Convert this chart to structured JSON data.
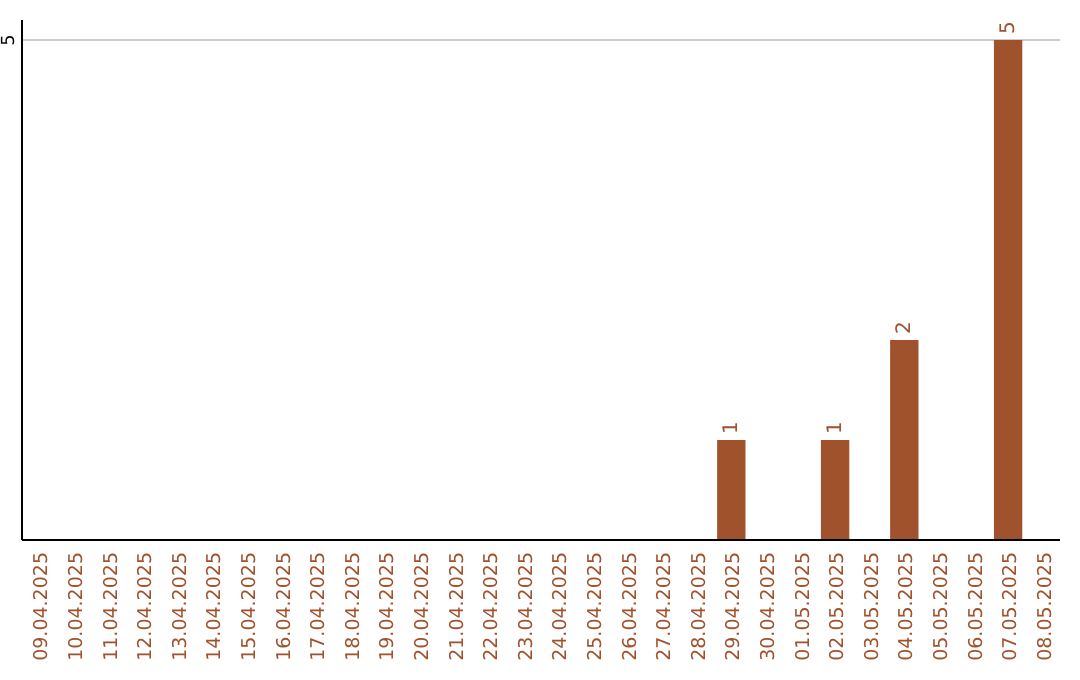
{
  "chart_data": {
    "type": "bar",
    "categories": [
      "09.04.2025",
      "10.04.2025",
      "11.04.2025",
      "12.04.2025",
      "13.04.2025",
      "14.04.2025",
      "15.04.2025",
      "16.04.2025",
      "17.04.2025",
      "18.04.2025",
      "19.04.2025",
      "20.04.2025",
      "21.04.2025",
      "22.04.2025",
      "23.04.2025",
      "24.04.2025",
      "25.04.2025",
      "26.04.2025",
      "27.04.2025",
      "28.04.2025",
      "29.04.2025",
      "30.04.2025",
      "01.05.2025",
      "02.05.2025",
      "03.05.2025",
      "04.05.2025",
      "05.05.2025",
      "06.05.2025",
      "07.05.2025",
      "08.05.2025"
    ],
    "values": [
      null,
      null,
      null,
      null,
      null,
      null,
      null,
      null,
      null,
      null,
      null,
      null,
      null,
      null,
      null,
      null,
      null,
      null,
      null,
      null,
      1,
      null,
      null,
      1,
      null,
      2,
      null,
      null,
      5,
      null
    ],
    "data_labels": true,
    "color": "#a0522d",
    "ylim": [
      0,
      5.2
    ],
    "yticks": [
      5
    ],
    "grid": "y"
  }
}
